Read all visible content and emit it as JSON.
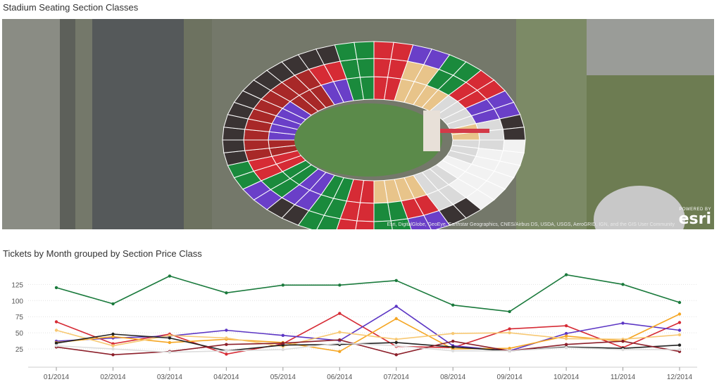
{
  "map_panel": {
    "title": "Stadium Seating Section Classes",
    "attribution": "Esri, DigitalGlobe, GeoEye, Earthstar Geographics, CNES/Airbus DS, USDA, USGS, AeroGRID, IGN, and the GIS User Community",
    "logo_powered": "POWERED BY",
    "logo_word": "esri",
    "section_colors": {
      "green": "#1a8a3c",
      "red": "#d62b35",
      "purple": "#6a3fc8",
      "dark": "#3a3333",
      "maroon": "#a82828",
      "tan": "#e8c48a",
      "gray": "#dadada",
      "white": "#f2f2f2"
    }
  },
  "chart_panel": {
    "title": "Tickets by Month grouped by Section Price Class"
  },
  "chart_data": {
    "type": "line",
    "title": "Tickets by Month grouped by Section Price Class",
    "xlabel": "",
    "ylabel": "",
    "categories": [
      "01/2014",
      "02/2014",
      "03/2014",
      "04/2014",
      "05/2014",
      "06/2014",
      "07/2014",
      "08/2014",
      "09/2014",
      "10/2014",
      "11/2014",
      "12/2014"
    ],
    "yticks": [
      25,
      50,
      75,
      100,
      125
    ],
    "ylim": [
      12,
      145
    ],
    "grid": true,
    "legend": "none",
    "series": [
      {
        "color": "#1a7a3c",
        "values": [
          120,
          95,
          138,
          112,
          124,
          124,
          131,
          93,
          83,
          140,
          125,
          97
        ]
      },
      {
        "color": "#d62b35",
        "values": [
          67,
          33,
          48,
          17,
          33,
          80,
          29,
          27,
          56,
          61,
          27,
          66
        ]
      },
      {
        "color": "#5b35c4",
        "values": [
          37,
          42,
          45,
          54,
          46,
          38,
          91,
          30,
          22,
          49,
          65,
          54
        ]
      },
      {
        "color": "#f5a623",
        "values": [
          35,
          44,
          35,
          40,
          35,
          21,
          72,
          25,
          26,
          45,
          37,
          79
        ]
      },
      {
        "color": "#f7c873",
        "values": [
          54,
          30,
          46,
          42,
          29,
          51,
          40,
          49,
          50,
          41,
          40,
          47
        ]
      },
      {
        "color": "#222222",
        "values": [
          34,
          48,
          42,
          22,
          31,
          32,
          35,
          28,
          22,
          28,
          26,
          31
        ]
      },
      {
        "color": "#8c1f2a",
        "values": [
          28,
          16,
          21,
          32,
          34,
          39,
          16,
          37,
          22,
          32,
          37,
          21
        ]
      },
      {
        "color": "#dddddd",
        "values": [
          30,
          25,
          20,
          22,
          24,
          34,
          30,
          22,
          22,
          27,
          24,
          24
        ]
      }
    ]
  }
}
